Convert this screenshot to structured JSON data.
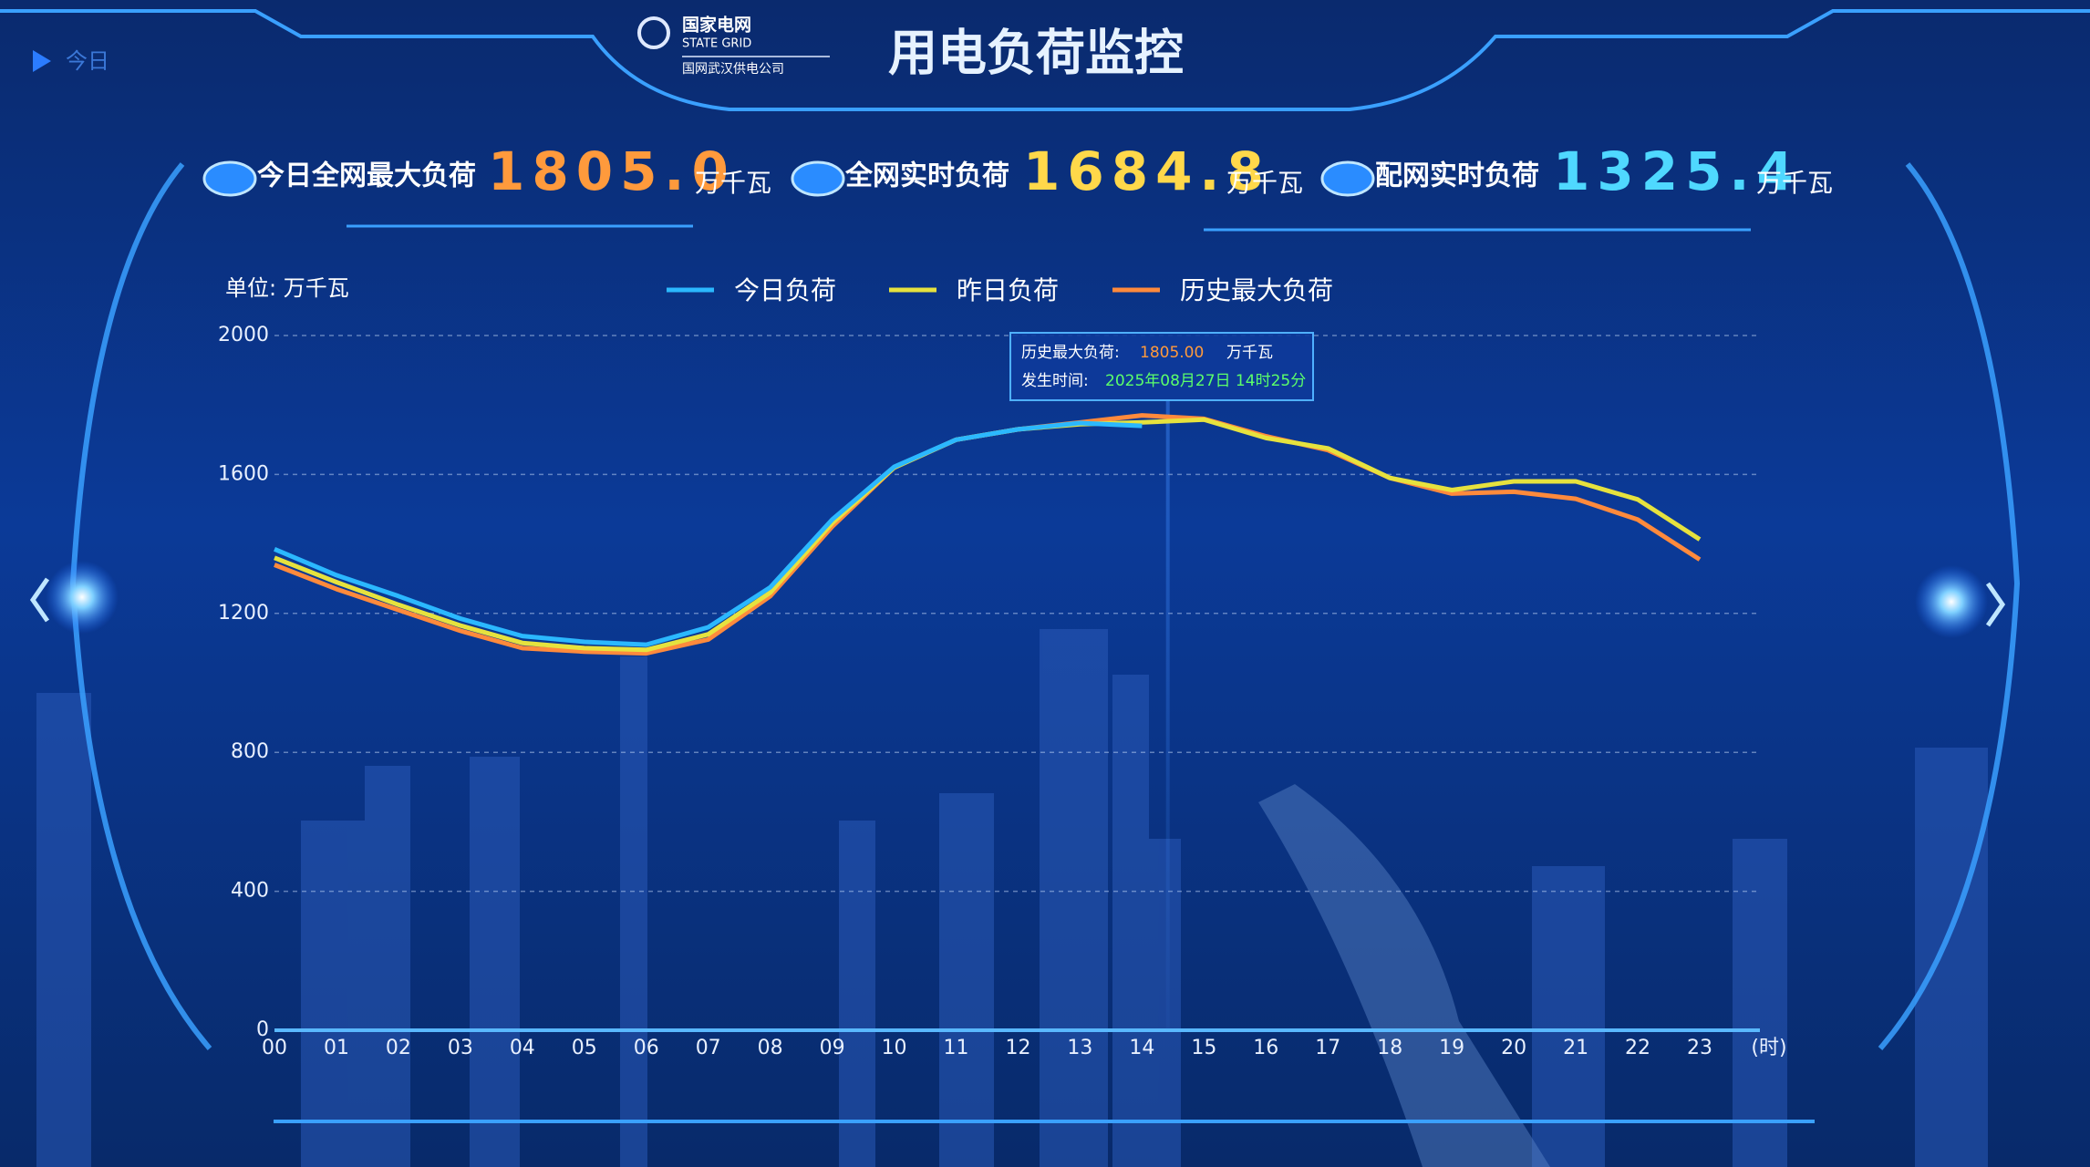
{
  "sidebar_label": "今日",
  "logo": {
    "name_cn": "国家电网",
    "name_en": "STATE GRID",
    "company": "国网武汉供电公司"
  },
  "title": "用电负荷监控",
  "stats": [
    {
      "label": "今日全网最大负荷",
      "value": "1805.0",
      "unit": "万千瓦",
      "color": "#ff9a3c"
    },
    {
      "label": "全网实时负荷",
      "value": "1684.8",
      "unit": "万千瓦",
      "color": "#ffd84a"
    },
    {
      "label": "配网实时负荷",
      "value": "1325.4",
      "unit": "万千瓦",
      "color": "#4fd8ff"
    }
  ],
  "chart_data": {
    "type": "line",
    "unit_label": "单位: 万千瓦",
    "x_label": "(时)",
    "categories": [
      "00",
      "01",
      "02",
      "03",
      "04",
      "05",
      "06",
      "07",
      "08",
      "09",
      "10",
      "11",
      "12",
      "13",
      "14",
      "15",
      "16",
      "17",
      "18",
      "19",
      "20",
      "21",
      "22",
      "23"
    ],
    "series": [
      {
        "name": "今日负荷",
        "color": "#2bb8ff",
        "values": [
          1385,
          1310,
          1250,
          1185,
          1135,
          1118,
          1110,
          1160,
          1275,
          1470,
          1622,
          1700,
          1730,
          1748,
          1740,
          null,
          null,
          null,
          null,
          null,
          null,
          null,
          null,
          null
        ]
      },
      {
        "name": "昨日负荷",
        "color": "#e6e23e",
        "values": [
          1360,
          1290,
          1225,
          1165,
          1115,
          1100,
          1095,
          1140,
          1260,
          1460,
          1620,
          1700,
          1730,
          1745,
          1750,
          1758,
          1705,
          1675,
          1590,
          1555,
          1580,
          1580,
          1528,
          1413
        ]
      },
      {
        "name": "历史最大负荷",
        "color": "#ff8a3c",
        "values": [
          1340,
          1270,
          1210,
          1150,
          1100,
          1090,
          1085,
          1125,
          1250,
          1450,
          1620,
          1700,
          1730,
          1750,
          1770,
          1760,
          1710,
          1670,
          1590,
          1545,
          1550,
          1530,
          1470,
          1355
        ]
      }
    ],
    "ylim": [
      0,
      2000
    ],
    "yticks": [
      0,
      400,
      800,
      1200,
      1600,
      2000
    ],
    "grid": true,
    "legend": "top",
    "tooltip": {
      "label": "历史最大负荷:",
      "value": "1805.00",
      "unit": "万千瓦",
      "time_label": "发生时间:",
      "time": "2025年08月27日 14时25分"
    }
  }
}
